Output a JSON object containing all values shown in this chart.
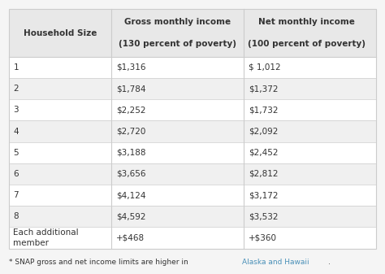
{
  "col_headers": [
    "Household Size",
    "Gross monthly income\n\n(130 percent of poverty)",
    "Net monthly income\n\n(100 percent of poverty)"
  ],
  "rows": [
    [
      "1",
      "$1,316",
      "$ 1,012"
    ],
    [
      "2",
      "$1,784",
      "$1,372"
    ],
    [
      "3",
      "$2,252",
      "$1,732"
    ],
    [
      "4",
      "$2,720",
      "$2,092"
    ],
    [
      "5",
      "$3,188",
      "$2,452"
    ],
    [
      "6",
      "$3,656",
      "$2,812"
    ],
    [
      "7",
      "$4,124",
      "$3,172"
    ],
    [
      "8",
      "$4,592",
      "$3,532"
    ],
    [
      "Each additional\nmember",
      "+$468",
      "+$360"
    ]
  ],
  "footnote_plain": "* SNAP gross and net income limits are higher in ",
  "footnote_link": "Alaska and Hawaii",
  "footnote_end": ".",
  "bg_color": "#f5f5f5",
  "header_bg": "#e8e8e8",
  "border_color": "#cccccc",
  "text_color": "#333333",
  "link_color": "#4a90b8",
  "font_size": 7.5,
  "header_font_size": 7.5
}
